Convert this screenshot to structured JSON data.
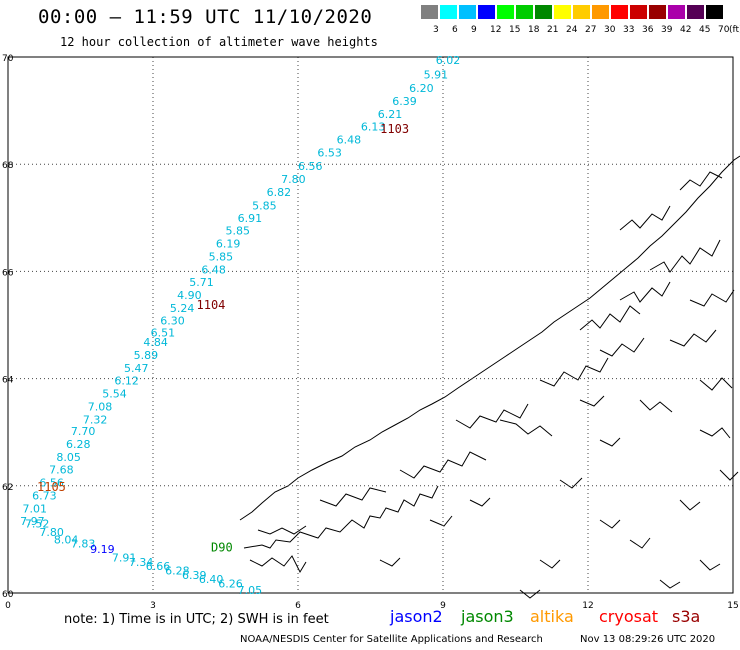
{
  "header": {
    "title": "00:00 – 11:59 UTC 11/10/2020",
    "subtitle": "12 hour collection of altimeter wave heights"
  },
  "legend": {
    "unit": "(ft)",
    "bins": [
      {
        "label": "3",
        "color": "#808080"
      },
      {
        "label": "6",
        "color": "#00ffff"
      },
      {
        "label": "9",
        "color": "#00c0ff"
      },
      {
        "label": "12",
        "color": "#0000ff"
      },
      {
        "label": "15",
        "color": "#00ff00"
      },
      {
        "label": "18",
        "color": "#00cc00"
      },
      {
        "label": "21",
        "color": "#008800"
      },
      {
        "label": "24",
        "color": "#ffff00"
      },
      {
        "label": "27",
        "color": "#ffcc00"
      },
      {
        "label": "30",
        "color": "#ff9900"
      },
      {
        "label": "33",
        "color": "#ff0000"
      },
      {
        "label": "36",
        "color": "#cc0000"
      },
      {
        "label": "39",
        "color": "#990000"
      },
      {
        "label": "42",
        "color": "#aa00aa"
      },
      {
        "label": "45",
        "color": "#550055"
      },
      {
        "label": "70",
        "color": "#000000"
      }
    ]
  },
  "axes": {
    "x_ticks": [
      "0",
      "3",
      "6",
      "9",
      "12",
      "15"
    ],
    "y_ticks": [
      "70",
      "68",
      "66",
      "64",
      "62",
      "60"
    ],
    "lon_range": [
      0,
      15
    ],
    "lat_range": [
      60,
      70
    ]
  },
  "passes": [
    {
      "label": "1103",
      "lon": 7.7,
      "lat": 68.66,
      "color": "#800000"
    },
    {
      "label": "1104",
      "lon": 3.9,
      "lat": 65.37,
      "color": "#800000"
    },
    {
      "label": "1105",
      "lon": 0.6,
      "lat": 61.98,
      "color": "#c04000"
    },
    {
      "label": "D90",
      "lon": 4.2,
      "lat": 60.85,
      "color": "#008800"
    }
  ],
  "observations": [
    {
      "v": "6.02",
      "lon": 8.85,
      "lat": 69.94
    },
    {
      "v": "5.91",
      "lon": 8.6,
      "lat": 69.67
    },
    {
      "v": "6.20",
      "lon": 8.3,
      "lat": 69.42
    },
    {
      "v": "6.39",
      "lon": 7.95,
      "lat": 69.18
    },
    {
      "v": "6.21",
      "lon": 7.65,
      "lat": 68.94
    },
    {
      "v": "6.13",
      "lon": 7.3,
      "lat": 68.7
    },
    {
      "v": "6.48",
      "lon": 6.8,
      "lat": 68.46
    },
    {
      "v": "6.53",
      "lon": 6.4,
      "lat": 68.22
    },
    {
      "v": "6.56",
      "lon": 6.0,
      "lat": 67.97
    },
    {
      "v": "7.80",
      "lon": 5.65,
      "lat": 67.72
    },
    {
      "v": "6.82",
      "lon": 5.35,
      "lat": 67.48
    },
    {
      "v": "5.85",
      "lon": 5.05,
      "lat": 67.23
    },
    {
      "v": "6.91",
      "lon": 4.75,
      "lat": 67.0
    },
    {
      "v": "5.85",
      "lon": 4.5,
      "lat": 66.76
    },
    {
      "v": "6.19",
      "lon": 4.3,
      "lat": 66.52
    },
    {
      "v": "5.85",
      "lon": 4.15,
      "lat": 66.28
    },
    {
      "v": "6.48",
      "lon": 4.0,
      "lat": 66.04
    },
    {
      "v": "5.71",
      "lon": 3.75,
      "lat": 65.8
    },
    {
      "v": "4.90",
      "lon": 3.5,
      "lat": 65.56
    },
    {
      "v": "5.24",
      "lon": 3.35,
      "lat": 65.32
    },
    {
      "v": "6.30",
      "lon": 3.15,
      "lat": 65.08
    },
    {
      "v": "6.51",
      "lon": 2.95,
      "lat": 64.86
    },
    {
      "v": "4.84",
      "lon": 2.8,
      "lat": 64.68
    },
    {
      "v": "5.89",
      "lon": 2.6,
      "lat": 64.44
    },
    {
      "v": "5.47",
      "lon": 2.4,
      "lat": 64.2
    },
    {
      "v": "6.12",
      "lon": 2.2,
      "lat": 63.96
    },
    {
      "v": "5.54",
      "lon": 1.95,
      "lat": 63.72
    },
    {
      "v": "7.08",
      "lon": 1.65,
      "lat": 63.48
    },
    {
      "v": "7.32",
      "lon": 1.55,
      "lat": 63.24
    },
    {
      "v": "7.70",
      "lon": 1.3,
      "lat": 63.02
    },
    {
      "v": "6.28",
      "lon": 1.2,
      "lat": 62.78
    },
    {
      "v": "8.05",
      "lon": 1.0,
      "lat": 62.54
    },
    {
      "v": "7.68",
      "lon": 0.85,
      "lat": 62.3
    },
    {
      "v": "6.56",
      "lon": 0.65,
      "lat": 62.06
    },
    {
      "v": "6.73",
      "lon": 0.5,
      "lat": 61.82
    },
    {
      "v": "7.01",
      "lon": 0.3,
      "lat": 61.58
    },
    {
      "v": "7.97",
      "lon": 0.25,
      "lat": 61.34
    },
    {
      "v": "7.52",
      "lon": 0.35,
      "lat": 61.3
    },
    {
      "v": "7.80",
      "lon": 0.65,
      "lat": 61.14
    },
    {
      "v": "8.04",
      "lon": 0.95,
      "lat": 61.0
    },
    {
      "v": "7.83",
      "lon": 1.3,
      "lat": 60.92
    },
    {
      "v": "9.19",
      "lon": 1.7,
      "lat": 60.82,
      "c": "#0000ff"
    },
    {
      "v": "7.91",
      "lon": 2.15,
      "lat": 60.66
    },
    {
      "v": "7.34",
      "lon": 2.5,
      "lat": 60.58
    },
    {
      "v": "6.66",
      "lon": 2.85,
      "lat": 60.5
    },
    {
      "v": "6.28",
      "lon": 3.25,
      "lat": 60.42
    },
    {
      "v": "6.39",
      "lon": 3.6,
      "lat": 60.34
    },
    {
      "v": "6.40",
      "lon": 3.95,
      "lat": 60.26
    },
    {
      "v": "6.26",
      "lon": 4.35,
      "lat": 60.18
    },
    {
      "v": "7.05",
      "lon": 4.75,
      "lat": 60.06
    }
  ],
  "footer": {
    "note": "note: 1) Time is in UTC; 2) SWH is in feet",
    "satellites": [
      {
        "name": "jason2",
        "color": "#0000ff"
      },
      {
        "name": "jason3",
        "color": "#008800"
      },
      {
        "name": "altika",
        "color": "#ff9900"
      },
      {
        "name": "cryosat",
        "color": "#ff0000"
      },
      {
        "name": "s3a",
        "color": "#990000"
      }
    ],
    "credit": "NOAA/NESDIS Center for Satellite Applications and Research",
    "timestamp": "Nov 13 08:29:26 UTC 2020"
  }
}
